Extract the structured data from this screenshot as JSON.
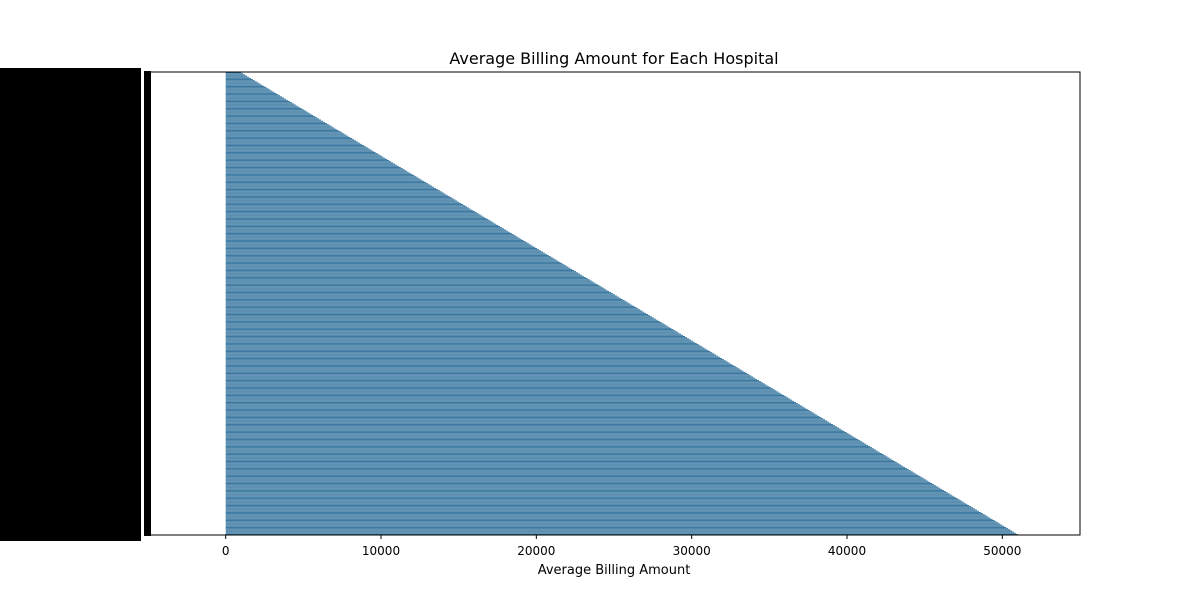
{
  "chart_data": {
    "type": "bar",
    "orientation": "horizontal",
    "title": "Average Billing Amount for Each Hospital",
    "xlabel": "Average Billing Amount",
    "ylabel": "",
    "xlim": [
      -5000,
      55000
    ],
    "xticks": [
      0,
      10000,
      20000,
      30000,
      40000,
      50000
    ],
    "xtick_labels": [
      "0",
      "10000",
      "20000",
      "30000",
      "40000",
      "50000"
    ],
    "sort": "ascending from top",
    "min_value": 1000,
    "max_value": 51000,
    "category_count": 400,
    "category_labels_legible": false,
    "grid": false,
    "legend": "none",
    "colors": {
      "bar": "#2e6f9a",
      "axes": "#000000",
      "category_label_block": "#000000"
    }
  }
}
